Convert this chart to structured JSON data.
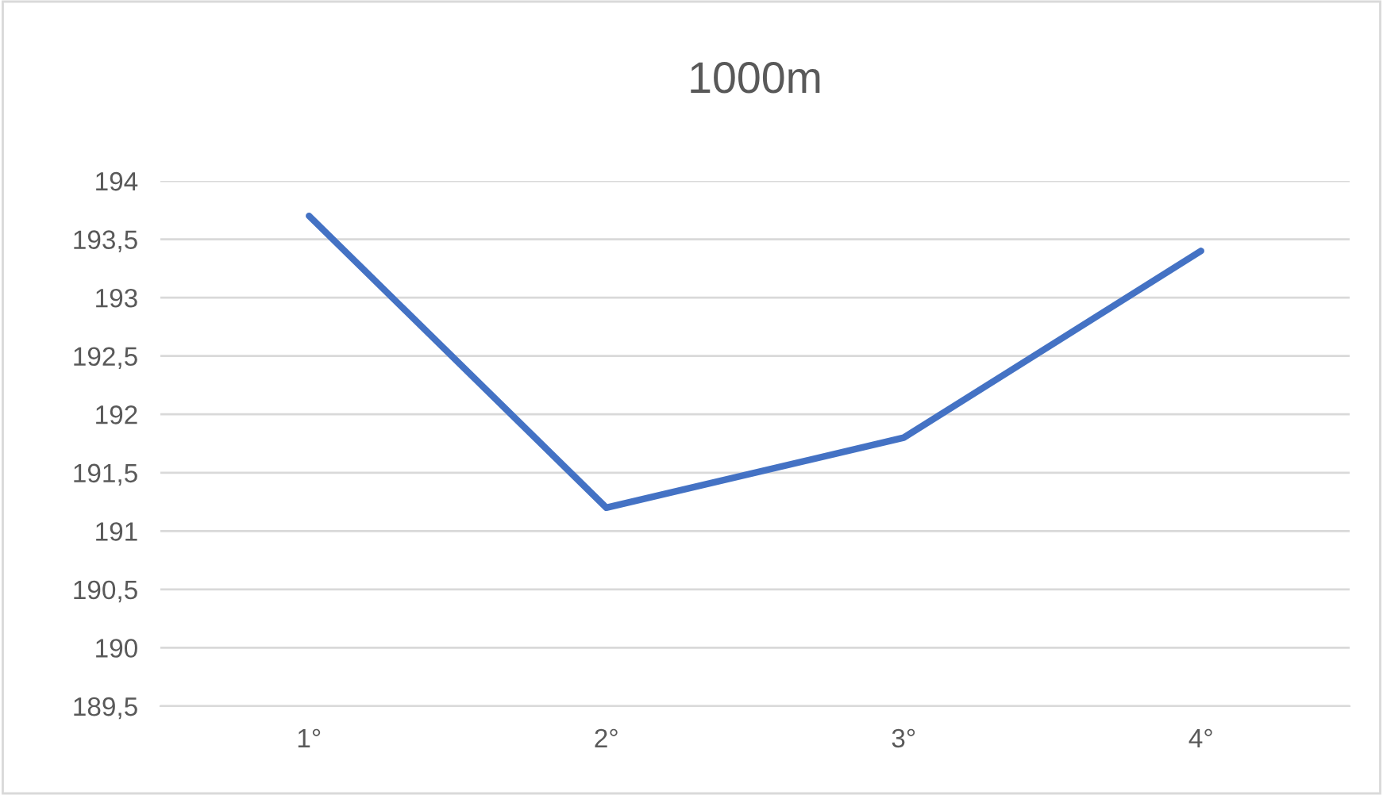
{
  "chart_data": {
    "type": "line",
    "title": "1000m",
    "categories": [
      "1°",
      "2°",
      "3°",
      "4°"
    ],
    "series": [
      {
        "color": "#4472c4",
        "values": [
          193.7,
          191.2,
          191.8,
          193.4
        ]
      }
    ],
    "ylim": [
      189.5,
      194
    ],
    "yticks": [
      {
        "value": 189.5,
        "label": "189,5"
      },
      190,
      {
        "value": 190.5,
        "label": "190,5"
      },
      191,
      {
        "value": 191.5,
        "label": "191,5"
      },
      192,
      {
        "value": 192.5,
        "label": "192,5"
      },
      193,
      {
        "value": 193.5,
        "label": "193,5"
      },
      194
    ],
    "grid": "y",
    "marker": "none",
    "line_style": "solid"
  }
}
